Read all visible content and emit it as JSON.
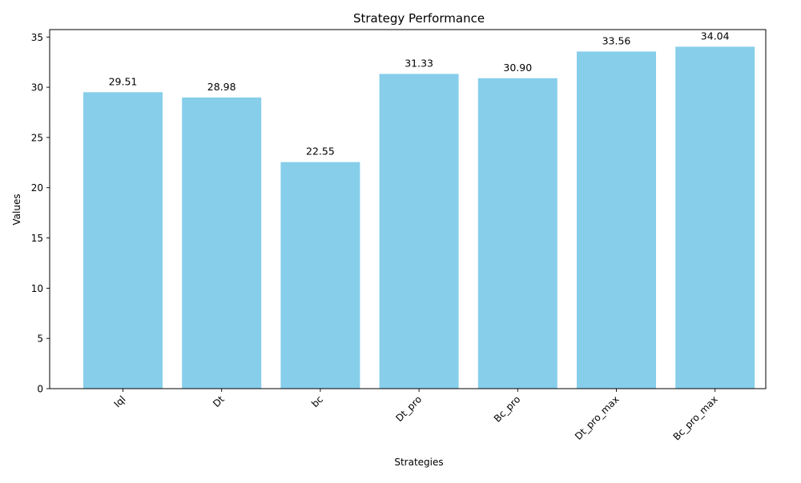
{
  "chart_data": {
    "type": "bar",
    "title": "Strategy Performance",
    "xlabel": "Strategies",
    "ylabel": "Values",
    "categories": [
      "Iql",
      "Dt",
      "bc",
      "Dt_pro",
      "Bc_pro",
      "Dt_pro_max",
      "Bc_pro_max"
    ],
    "values": [
      29.51,
      28.98,
      22.55,
      31.33,
      30.9,
      33.56,
      34.04
    ],
    "value_labels": [
      "29.51",
      "28.98",
      "22.55",
      "31.33",
      "30.90",
      "33.56",
      "34.04"
    ],
    "ylim": [
      0,
      35.74
    ],
    "yticks": [
      0,
      5,
      10,
      15,
      20,
      25,
      30,
      35
    ],
    "bar_color": "#87CEEB",
    "grid": false,
    "legend": "none",
    "xtick_rotation_deg": 45
  }
}
